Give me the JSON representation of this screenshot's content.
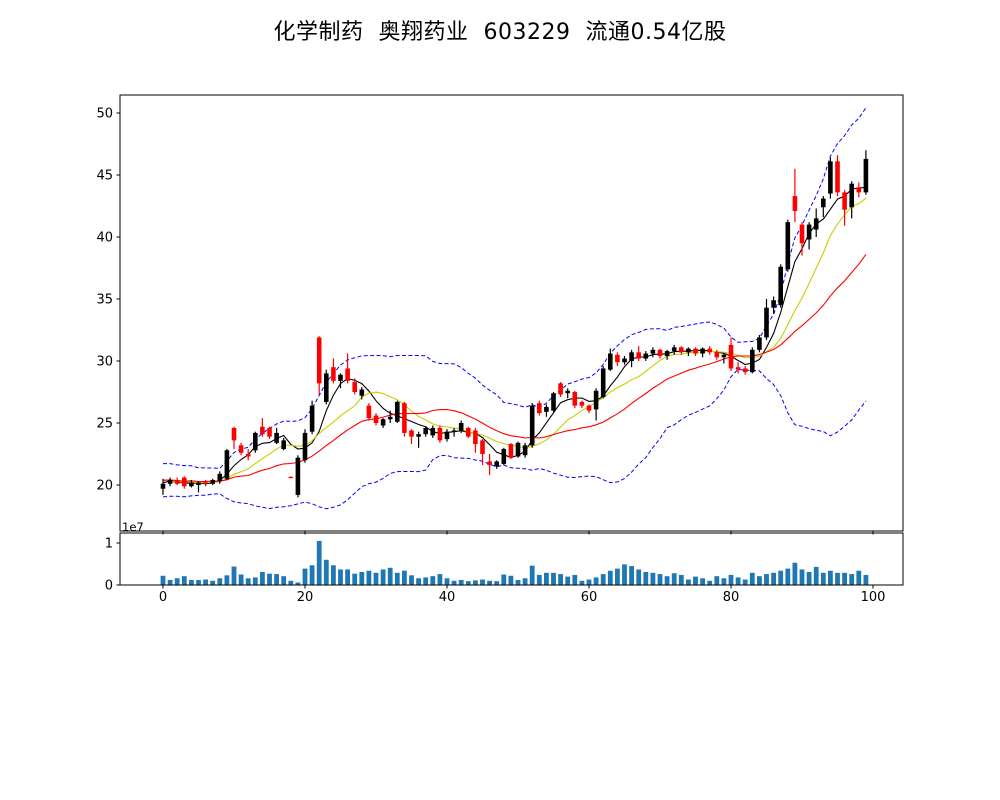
{
  "figure": {
    "title": "化学制药  奥翔药业  603229  流通0.54亿股",
    "background": "#ffffff"
  },
  "chart_data": [
    {
      "type": "candlestick",
      "title": "化学制药  奥翔药业  603229  流通0.54亿股",
      "xlabel": "",
      "ylabel": "",
      "x_ticks": [
        0,
        20,
        40,
        60,
        80,
        100
      ],
      "y_ticks": [
        20,
        25,
        30,
        35,
        40,
        45,
        50
      ],
      "xlim": [
        -6.1,
        104.2
      ],
      "ylim": [
        16.4,
        51.5
      ],
      "grid": false,
      "legend": "none",
      "colors": {
        "up": "#000000",
        "down": "#ff0000",
        "axis": "#000000",
        "background": "#ffffff"
      },
      "overlays": {
        "moving_averages": [
          {
            "name": "MA5",
            "window": 5,
            "color": "#000000"
          },
          {
            "name": "MA10",
            "window": 10,
            "color": "#cccc00"
          },
          {
            "name": "MA20",
            "window": 20,
            "color": "#ff0000"
          }
        ],
        "bollinger": {
          "window": 20,
          "mult": 2,
          "color": "#0000ff",
          "style": "dashed"
        },
        "prehistory_seed_closes": [
          19.4,
          19.8,
          21.2,
          20.9,
          19.6,
          21.4,
          20.1,
          19.5,
          21.0,
          20.7,
          19.3,
          20.9,
          21.3,
          19.7,
          20.2,
          21.1,
          19.6,
          20.8,
          20.0,
          20.4
        ]
      },
      "x": [
        0,
        1,
        2,
        3,
        4,
        5,
        6,
        7,
        8,
        9,
        10,
        11,
        12,
        13,
        14,
        15,
        16,
        17,
        18,
        19,
        20,
        21,
        22,
        23,
        24,
        25,
        26,
        27,
        28,
        29,
        30,
        31,
        32,
        33,
        34,
        35,
        36,
        37,
        38,
        39,
        40,
        41,
        42,
        43,
        44,
        45,
        46,
        47,
        48,
        49,
        50,
        51,
        52,
        53,
        54,
        55,
        56,
        57,
        58,
        59,
        60,
        61,
        62,
        63,
        64,
        65,
        66,
        67,
        68,
        69,
        70,
        71,
        72,
        73,
        74,
        75,
        76,
        77,
        78,
        79,
        80,
        81,
        82,
        83,
        84,
        85,
        86,
        87,
        88,
        89,
        90,
        91,
        92,
        93,
        94,
        95,
        96,
        97,
        98,
        99
      ],
      "ohlc": [
        [
          19.7,
          20.5,
          19.2,
          20.1
        ],
        [
          20.1,
          20.6,
          19.9,
          20.4
        ],
        [
          20.4,
          20.6,
          20.0,
          20.1
        ],
        [
          20.6,
          20.7,
          19.7,
          19.9
        ],
        [
          19.9,
          20.4,
          19.8,
          20.2
        ],
        [
          20.0,
          20.3,
          19.4,
          20.2
        ],
        [
          20.2,
          20.4,
          19.9,
          20.1
        ],
        [
          20.1,
          20.5,
          20.0,
          20.4
        ],
        [
          20.3,
          21.1,
          20.1,
          20.9
        ],
        [
          20.5,
          22.9,
          20.4,
          22.8
        ],
        [
          24.6,
          24.7,
          22.9,
          23.6
        ],
        [
          23.2,
          23.4,
          22.4,
          22.6
        ],
        [
          22.5,
          22.9,
          22.0,
          22.3
        ],
        [
          22.8,
          24.3,
          22.6,
          24.2
        ],
        [
          24.7,
          25.4,
          23.9,
          24.1
        ],
        [
          24.6,
          24.7,
          23.7,
          23.9
        ],
        [
          23.4,
          24.6,
          23.3,
          24.2
        ],
        [
          22.9,
          23.8,
          22.8,
          23.6
        ],
        [
          20.65,
          20.7,
          20.6,
          20.62
        ],
        [
          19.2,
          22.4,
          19.0,
          22.2
        ],
        [
          22.0,
          24.5,
          21.8,
          24.2
        ],
        [
          24.3,
          26.8,
          24.1,
          26.4
        ],
        [
          31.9,
          32.0,
          27.3,
          28.2
        ],
        [
          26.7,
          29.3,
          26.5,
          29.0
        ],
        [
          29.5,
          30.2,
          28.2,
          28.4
        ],
        [
          28.4,
          29.0,
          27.8,
          28.9
        ],
        [
          29.4,
          30.6,
          28.2,
          28.4
        ],
        [
          28.3,
          28.6,
          27.3,
          27.5
        ],
        [
          27.2,
          27.9,
          26.9,
          27.7
        ],
        [
          26.4,
          26.6,
          25.2,
          25.4
        ],
        [
          25.6,
          25.8,
          24.8,
          25.0
        ],
        [
          24.8,
          25.4,
          24.6,
          25.3
        ],
        [
          25.3,
          26.0,
          25.0,
          25.5
        ],
        [
          25.1,
          26.8,
          25.0,
          26.7
        ],
        [
          26.6,
          26.7,
          23.9,
          24.2
        ],
        [
          24.4,
          24.5,
          23.3,
          23.9
        ],
        [
          23.9,
          24.3,
          23.0,
          24.1
        ],
        [
          24.1,
          24.7,
          23.9,
          24.6
        ],
        [
          24.0,
          24.8,
          23.8,
          24.6
        ],
        [
          24.6,
          24.8,
          23.4,
          23.6
        ],
        [
          23.7,
          24.5,
          23.5,
          24.3
        ],
        [
          24.3,
          24.6,
          23.9,
          24.4
        ],
        [
          24.4,
          25.2,
          24.2,
          25.0
        ],
        [
          24.6,
          24.7,
          23.8,
          23.9
        ],
        [
          24.4,
          24.6,
          22.6,
          23.3
        ],
        [
          23.6,
          23.7,
          21.6,
          22.5
        ],
        [
          21.9,
          22.5,
          20.8,
          21.6
        ],
        [
          21.5,
          22.0,
          21.3,
          21.9
        ],
        [
          21.7,
          23.0,
          21.6,
          22.9
        ],
        [
          23.3,
          23.4,
          22.1,
          22.2
        ],
        [
          22.3,
          23.5,
          22.2,
          23.4
        ],
        [
          22.4,
          23.4,
          22.2,
          23.2
        ],
        [
          23.2,
          26.6,
          23.0,
          26.4
        ],
        [
          26.6,
          26.8,
          25.6,
          25.8
        ],
        [
          25.9,
          26.5,
          25.5,
          26.3
        ],
        [
          26.0,
          27.5,
          25.9,
          27.4
        ],
        [
          28.2,
          28.3,
          27.1,
          27.3
        ],
        [
          27.4,
          27.8,
          27.0,
          27.6
        ],
        [
          27.5,
          27.6,
          26.2,
          26.4
        ],
        [
          26.7,
          26.8,
          26.2,
          26.4
        ],
        [
          26.4,
          26.5,
          25.8,
          26.0
        ],
        [
          26.1,
          27.8,
          25.2,
          27.6
        ],
        [
          27.1,
          29.6,
          27.0,
          29.4
        ],
        [
          29.3,
          31.0,
          29.2,
          30.6
        ],
        [
          30.5,
          30.7,
          29.6,
          29.9
        ],
        [
          29.9,
          30.4,
          29.7,
          30.2
        ],
        [
          30.0,
          30.9,
          29.5,
          30.7
        ],
        [
          30.7,
          31.2,
          30.0,
          30.2
        ],
        [
          30.2,
          30.8,
          30.0,
          30.6
        ],
        [
          30.6,
          31.1,
          30.3,
          30.9
        ],
        [
          30.9,
          31.0,
          30.2,
          30.4
        ],
        [
          30.4,
          30.9,
          30.1,
          30.8
        ],
        [
          30.8,
          31.3,
          30.5,
          31.1
        ],
        [
          31.1,
          31.2,
          30.5,
          30.7
        ],
        [
          30.7,
          31.1,
          30.4,
          31.0
        ],
        [
          31.0,
          31.1,
          30.4,
          30.6
        ],
        [
          30.6,
          31.1,
          30.3,
          31.0
        ],
        [
          31.0,
          31.2,
          30.5,
          30.7
        ],
        [
          30.7,
          30.9,
          30.1,
          30.3
        ],
        [
          30.3,
          30.6,
          29.8,
          30.5
        ],
        [
          31.3,
          31.9,
          29.2,
          29.4
        ],
        [
          29.5,
          29.9,
          29.0,
          29.3
        ],
        [
          29.4,
          29.6,
          28.9,
          29.1
        ],
        [
          29.1,
          31.1,
          29.0,
          30.9
        ],
        [
          30.9,
          32.1,
          30.7,
          31.9
        ],
        [
          31.9,
          35.0,
          31.7,
          34.3
        ],
        [
          34.3,
          35.2,
          33.8,
          34.9
        ],
        [
          34.5,
          37.8,
          34.3,
          37.6
        ],
        [
          37.4,
          41.4,
          37.2,
          41.2
        ],
        [
          43.3,
          45.5,
          41.2,
          42.1
        ],
        [
          41.0,
          41.2,
          38.5,
          39.5
        ],
        [
          39.8,
          41.2,
          39.0,
          41.0
        ],
        [
          40.6,
          42.3,
          40.0,
          41.5
        ],
        [
          42.4,
          43.3,
          41.6,
          43.1
        ],
        [
          43.5,
          46.4,
          43.1,
          46.1
        ],
        [
          46.1,
          46.6,
          43.3,
          43.6
        ],
        [
          43.6,
          43.8,
          40.9,
          42.2
        ],
        [
          42.4,
          44.5,
          41.5,
          44.3
        ],
        [
          44.0,
          44.4,
          43.2,
          43.6
        ],
        [
          43.6,
          47.0,
          43.4,
          46.3
        ]
      ]
    },
    {
      "type": "bar",
      "name": "volume",
      "color": "#1f77b4",
      "y_tick_labels": [
        "0",
        "1"
      ],
      "y_tick_values_1e7": [
        0,
        1
      ],
      "offset_label": "1e7",
      "x_tick_labels": [
        "0",
        "20",
        "40",
        "60",
        "80",
        "100"
      ],
      "ylim_1e7": [
        0,
        1.24
      ],
      "values_1e6": [
        2.2,
        1.2,
        1.6,
        2.1,
        1.2,
        1.2,
        1.3,
        1.0,
        1.6,
        2.3,
        4.4,
        2.5,
        1.6,
        1.8,
        3.1,
        2.7,
        2.6,
        2.1,
        1.0,
        0.6,
        3.9,
        4.7,
        10.5,
        6.0,
        4.7,
        3.7,
        3.7,
        2.7,
        3.1,
        3.4,
        2.9,
        3.7,
        4.1,
        2.9,
        3.4,
        2.3,
        1.6,
        1.8,
        2.1,
        2.6,
        1.6,
        1.0,
        1.2,
        0.9,
        1.1,
        1.3,
        1.0,
        0.9,
        2.5,
        2.2,
        1.2,
        1.6,
        4.6,
        2.4,
        2.9,
        2.9,
        2.6,
        2.0,
        2.4,
        1.0,
        1.3,
        1.8,
        2.6,
        3.4,
        3.9,
        4.9,
        4.5,
        3.7,
        3.1,
        2.9,
        2.6,
        2.1,
        2.8,
        2.4,
        1.3,
        2.0,
        1.6,
        1.0,
        2.1,
        1.6,
        2.4,
        1.8,
        1.3,
        2.9,
        2.1,
        2.6,
        2.9,
        3.4,
        3.9,
        5.3,
        3.7,
        3.1,
        4.3,
        2.9,
        3.4,
        2.9,
        2.9,
        2.6,
        3.4,
        2.4
      ]
    }
  ]
}
